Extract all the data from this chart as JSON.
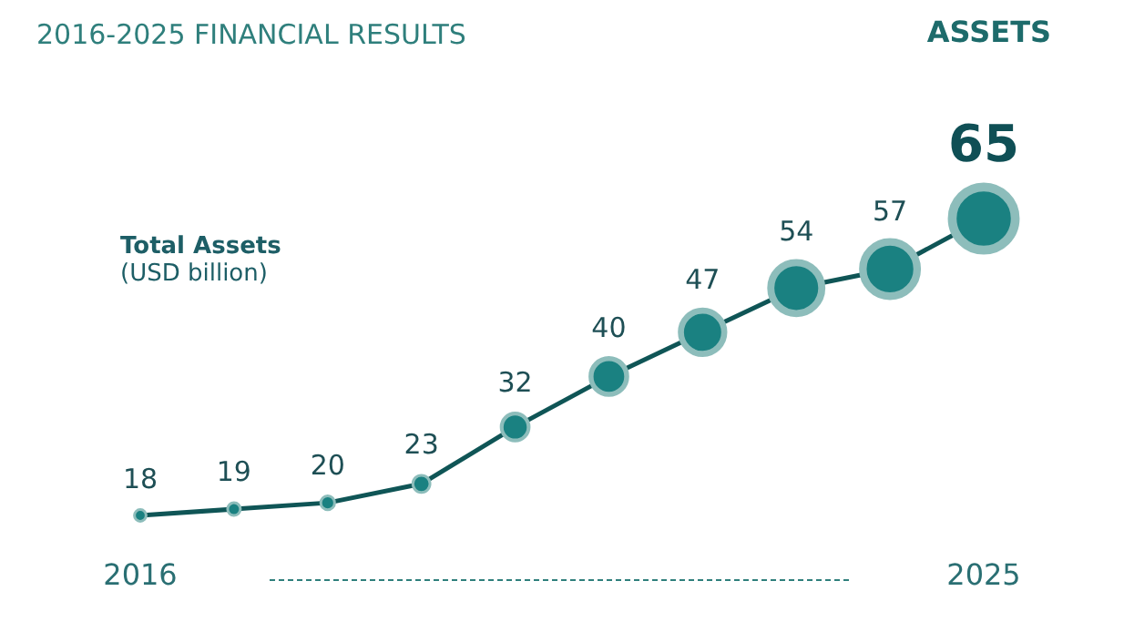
{
  "chart_data": {
    "type": "line",
    "title": "2016-2025 FINANCIAL RESULTS",
    "subtitle": "ASSETS",
    "ylabel": "Total Assets",
    "annotations": [
      "(USD billion)"
    ],
    "categories": [
      "2016",
      null,
      null,
      null,
      null,
      null,
      null,
      null,
      null,
      "2025"
    ],
    "series": [
      {
        "color": "#0f5556",
        "values": [
          18,
          19,
          20,
          23,
          32,
          40,
          47,
          54,
          57,
          65
        ]
      }
    ],
    "marker": "circle",
    "line_style": "solid",
    "data_labels": true
  }
}
